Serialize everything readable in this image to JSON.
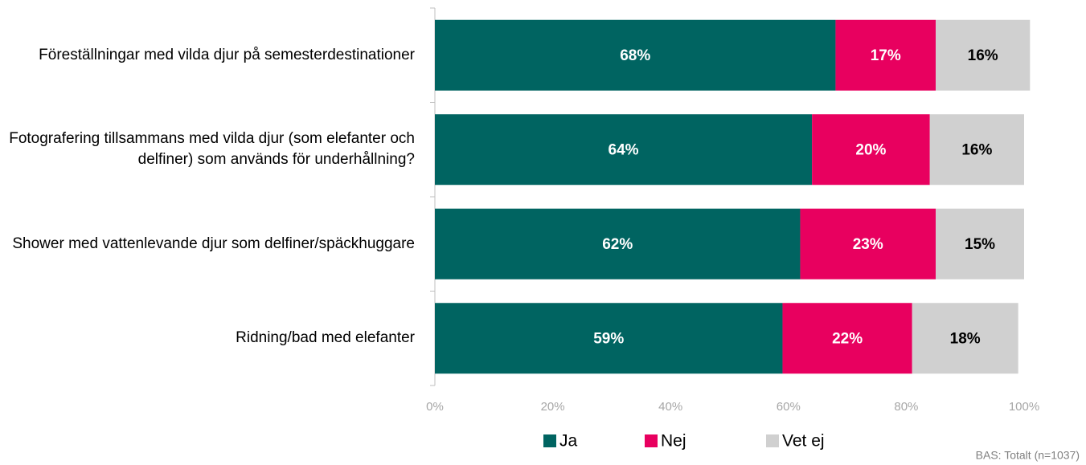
{
  "chart_data": {
    "type": "stacked-bar-horizontal",
    "categories": [
      "Föreställningar med vilda djur på semesterdestinationer",
      "Fotografering tillsammans med vilda djur (som elefanter och delfiner) som används för underhållning?",
      "Shower med vattenlevande djur som delfiner/späckhuggare",
      "Ridning/bad med elefanter"
    ],
    "series": [
      {
        "name": "Ja",
        "color": "#006461",
        "label_color": "#ffffff",
        "values": [
          68,
          64,
          62,
          59
        ],
        "value_labels": [
          "68%",
          "64%",
          "62%",
          "59%"
        ]
      },
      {
        "name": "Nej",
        "color": "#e8005f",
        "label_color": "#ffffff",
        "values": [
          17,
          20,
          23,
          22
        ],
        "value_labels": [
          "17%",
          "20%",
          "23%",
          "22%"
        ]
      },
      {
        "name": "Vet ej",
        "color": "#d0d0d0",
        "label_color": "#000000",
        "values": [
          16,
          16,
          15,
          18
        ],
        "value_labels": [
          "16%",
          "16%",
          "15%",
          "18%"
        ]
      }
    ],
    "xlim": [
      0,
      100
    ],
    "xticks": [
      {
        "value": 0,
        "label": "0%"
      },
      {
        "value": 20,
        "label": "20%"
      },
      {
        "value": 40,
        "label": "40%"
      },
      {
        "value": 60,
        "label": "60%"
      },
      {
        "value": 80,
        "label": "80%"
      },
      {
        "value": 100,
        "label": "100%"
      }
    ],
    "legend": "bottom",
    "footnote": "BAS: Totalt (n=1037)"
  }
}
